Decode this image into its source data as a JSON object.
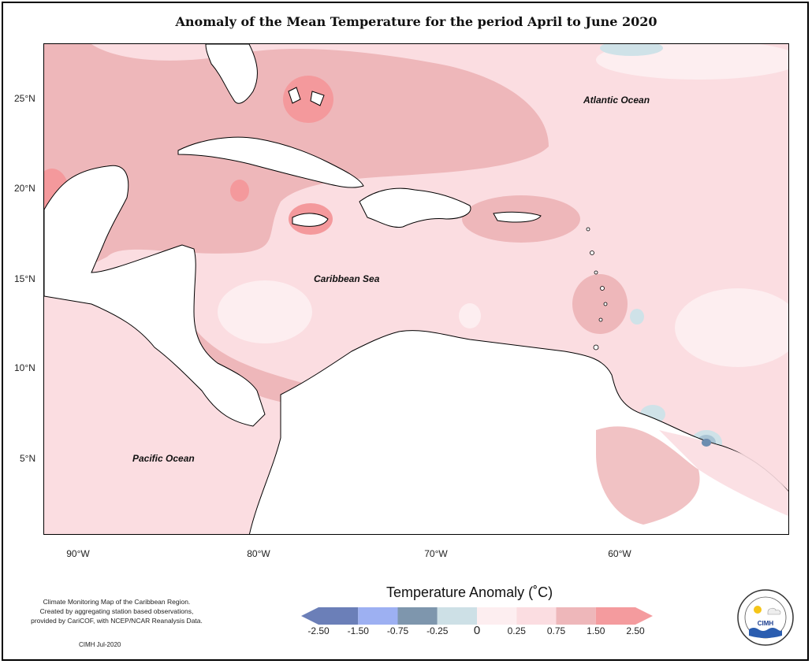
{
  "title": "Anomaly of the Mean Temperature for the period April to June 2020",
  "map": {
    "ocean_labels": {
      "atlantic": "Atlantic Ocean",
      "caribbean": "Caribbean Sea",
      "pacific": "Pacific Ocean"
    },
    "lat_ticks": [
      "25°N",
      "20°N",
      "15°N",
      "10°N",
      "5°N"
    ],
    "lon_ticks": [
      "90°W",
      "80°W",
      "70°W",
      "60°W"
    ],
    "colors": {
      "land": "#ffffff",
      "outline": "#000000",
      "anomaly_0_0.25": "#fdeef0",
      "anomaly_0.25_0.75": "#fbdde1",
      "anomaly_0.75_1.50": "#eeb7ba",
      "anomaly_1.50_2.50": "#f4999c",
      "anomaly_-0.25_0": "#cfe2e8",
      "anomaly_-0.75_-0.25": "#a9c4d4",
      "anomaly_-1.50_-0.75": "#6d8db0"
    }
  },
  "legend": {
    "title": "Temperature Anomaly (˚C)",
    "labels": [
      "-2.50",
      "-1.50",
      "-0.75",
      "-0.25",
      "0",
      "0.25",
      "0.75",
      "1.50",
      "2.50"
    ],
    "bins": [
      {
        "color": "#6b7fb8"
      },
      {
        "color": "#9db0f2"
      },
      {
        "color": "#7e96ad"
      },
      {
        "color": "#cde0e6"
      },
      {
        "color": "#fdeef0"
      },
      {
        "color": "#fbdde1"
      },
      {
        "color": "#eeb7ba"
      },
      {
        "color": "#f49b9e"
      }
    ]
  },
  "notes": {
    "line1": "Climate Monitoring Map of the Caribbean Region.",
    "line2": "Created by aggregating station based observations,",
    "line3": "provided by CariCOF, with NCEP/NCAR Reanalysis Data.",
    "credit": "CIMH Jul-2020"
  },
  "logo": {
    "text": "CIMH"
  }
}
